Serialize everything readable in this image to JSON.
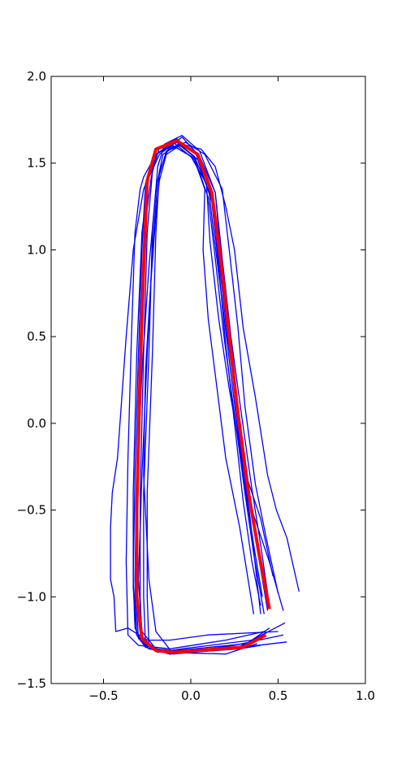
{
  "chart_data": {
    "type": "line",
    "title": "",
    "xlabel": "",
    "ylabel": "",
    "xlim": [
      -0.8,
      1.0
    ],
    "ylim": [
      -1.5,
      2.0
    ],
    "grid": false,
    "x_ticks": [
      {
        "value": -0.5,
        "label": "−0.5"
      },
      {
        "value": 0.0,
        "label": "0.0"
      },
      {
        "value": 0.5,
        "label": "0.5"
      },
      {
        "value": 1.0,
        "label": "1.0"
      }
    ],
    "y_ticks": [
      {
        "value": -1.5,
        "label": "−1.5"
      },
      {
        "value": -1.0,
        "label": "−1.0"
      },
      {
        "value": -0.5,
        "label": "−0.5"
      },
      {
        "value": 0.0,
        "label": "0.0"
      },
      {
        "value": 0.5,
        "label": "0.5"
      },
      {
        "value": 1.0,
        "label": "1.0"
      },
      {
        "value": 1.5,
        "label": "1.5"
      },
      {
        "value": 2.0,
        "label": "2.0"
      }
    ],
    "series_color": "#0000ff",
    "mean_color": "#ff0000",
    "series": [
      {
        "points": [
          [
            0.43,
            -1.21
          ],
          [
            0.3,
            -1.29
          ],
          [
            -0.1,
            -1.32
          ],
          [
            -0.24,
            -1.3
          ],
          [
            -0.28,
            -1.25
          ],
          [
            -0.29,
            -1.0
          ],
          [
            -0.29,
            -0.4
          ],
          [
            -0.27,
            0.4
          ],
          [
            -0.25,
            1.1
          ],
          [
            -0.22,
            1.45
          ],
          [
            -0.18,
            1.59
          ],
          [
            -0.08,
            1.64
          ],
          [
            0.03,
            1.55
          ],
          [
            0.12,
            1.32
          ],
          [
            0.16,
            0.95
          ],
          [
            0.21,
            0.5
          ],
          [
            0.27,
            0.05
          ],
          [
            0.33,
            -0.4
          ],
          [
            0.38,
            -0.72
          ],
          [
            0.44,
            -1.08
          ]
        ]
      },
      {
        "points": [
          [
            0.38,
            -1.24
          ],
          [
            0.25,
            -1.3
          ],
          [
            -0.12,
            -1.33
          ],
          [
            -0.26,
            -1.29
          ],
          [
            -0.31,
            -1.22
          ],
          [
            -0.33,
            -0.95
          ],
          [
            -0.33,
            -0.4
          ],
          [
            -0.31,
            0.4
          ],
          [
            -0.28,
            1.1
          ],
          [
            -0.24,
            1.42
          ],
          [
            -0.19,
            1.56
          ],
          [
            -0.1,
            1.6
          ],
          [
            0.02,
            1.53
          ],
          [
            0.1,
            1.3
          ],
          [
            0.14,
            0.95
          ],
          [
            0.19,
            0.5
          ],
          [
            0.25,
            0.05
          ],
          [
            0.31,
            -0.4
          ],
          [
            0.36,
            -0.75
          ],
          [
            0.42,
            -1.1
          ]
        ]
      },
      {
        "points": [
          [
            0.45,
            -1.18
          ],
          [
            0.32,
            -1.27
          ],
          [
            -0.08,
            -1.31
          ],
          [
            -0.21,
            -1.31
          ],
          [
            -0.26,
            -1.27
          ],
          [
            -0.27,
            -1.0
          ],
          [
            -0.27,
            -0.4
          ],
          [
            -0.24,
            0.4
          ],
          [
            -0.22,
            1.1
          ],
          [
            -0.19,
            1.48
          ],
          [
            -0.15,
            1.61
          ],
          [
            -0.05,
            1.66
          ],
          [
            0.05,
            1.57
          ],
          [
            0.14,
            1.33
          ],
          [
            0.18,
            0.95
          ],
          [
            0.23,
            0.5
          ],
          [
            0.29,
            0.05
          ],
          [
            0.35,
            -0.38
          ],
          [
            0.4,
            -0.7
          ],
          [
            0.45,
            -1.05
          ]
        ]
      },
      {
        "points": [
          [
            0.55,
            -1.26
          ],
          [
            0.3,
            -1.29
          ],
          [
            -0.1,
            -1.33
          ],
          [
            -0.24,
            -1.3
          ],
          [
            -0.3,
            -1.24
          ],
          [
            -0.32,
            -0.9
          ],
          [
            -0.31,
            -0.3
          ],
          [
            -0.28,
            0.5
          ],
          [
            -0.26,
            1.15
          ],
          [
            -0.23,
            1.4
          ],
          [
            -0.2,
            1.55
          ],
          [
            -0.1,
            1.62
          ],
          [
            0.02,
            1.52
          ],
          [
            0.08,
            1.35
          ],
          [
            0.07,
            1.0
          ],
          [
            0.1,
            0.6
          ],
          [
            0.15,
            0.2
          ],
          [
            0.2,
            -0.2
          ],
          [
            0.28,
            -0.6
          ],
          [
            0.36,
            -1.1
          ]
        ]
      },
      {
        "points": [
          [
            0.54,
            -1.15
          ],
          [
            0.35,
            -1.25
          ],
          [
            -0.05,
            -1.3
          ],
          [
            -0.19,
            -1.32
          ],
          [
            -0.24,
            -1.28
          ],
          [
            -0.25,
            -1.0
          ],
          [
            -0.25,
            -0.4
          ],
          [
            -0.22,
            0.4
          ],
          [
            -0.2,
            1.1
          ],
          [
            -0.18,
            1.45
          ],
          [
            -0.13,
            1.58
          ],
          [
            -0.03,
            1.62
          ],
          [
            0.08,
            1.55
          ],
          [
            0.18,
            1.35
          ],
          [
            0.22,
            1.0
          ],
          [
            0.27,
            0.55
          ],
          [
            0.31,
            0.1
          ],
          [
            0.37,
            -0.35
          ],
          [
            0.43,
            -0.65
          ],
          [
            0.5,
            -0.98
          ]
        ]
      },
      {
        "points": [
          [
            0.42,
            -1.2
          ],
          [
            0.2,
            -1.25
          ],
          [
            -0.12,
            -1.3
          ],
          [
            -0.3,
            -1.28
          ],
          [
            -0.36,
            -1.22
          ],
          [
            -0.37,
            -0.8
          ],
          [
            -0.36,
            -0.2
          ],
          [
            -0.34,
            0.5
          ],
          [
            -0.32,
            1.1
          ],
          [
            -0.29,
            1.35
          ],
          [
            -0.27,
            1.42
          ],
          [
            -0.2,
            1.55
          ],
          [
            -0.08,
            1.62
          ],
          [
            0.02,
            1.54
          ],
          [
            0.12,
            1.3
          ],
          [
            0.17,
            0.9
          ],
          [
            0.23,
            0.4
          ],
          [
            0.28,
            -0.1
          ],
          [
            0.34,
            -0.55
          ],
          [
            0.4,
            -1.1
          ]
        ]
      },
      {
        "points": [
          [
            0.38,
            -1.27
          ],
          [
            0.2,
            -1.33
          ],
          [
            -0.15,
            -1.32
          ],
          [
            -0.28,
            -1.26
          ],
          [
            -0.32,
            -1.18
          ],
          [
            -0.33,
            -0.9
          ],
          [
            -0.32,
            -0.3
          ],
          [
            -0.3,
            0.4
          ],
          [
            -0.28,
            1.0
          ],
          [
            -0.26,
            1.38
          ],
          [
            -0.21,
            1.54
          ],
          [
            -0.12,
            1.61
          ],
          [
            0.0,
            1.54
          ],
          [
            0.09,
            1.38
          ],
          [
            0.11,
            1.05
          ],
          [
            0.16,
            0.6
          ],
          [
            0.22,
            0.2
          ],
          [
            0.3,
            -0.25
          ],
          [
            0.4,
            -0.55
          ],
          [
            0.47,
            -0.88
          ]
        ]
      },
      {
        "points": [
          [
            0.62,
            -0.97
          ],
          [
            0.55,
            -0.66
          ],
          [
            0.49,
            -0.5
          ],
          [
            0.44,
            -0.3
          ],
          [
            0.37,
            0.15
          ],
          [
            0.3,
            0.55
          ],
          [
            0.25,
            1.0
          ],
          [
            0.2,
            1.25
          ],
          [
            0.14,
            1.48
          ],
          [
            0.06,
            1.58
          ],
          [
            -0.05,
            1.61
          ],
          [
            -0.14,
            1.55
          ],
          [
            -0.18,
            1.4
          ],
          [
            -0.2,
            1.2
          ],
          [
            -0.23,
            0.8
          ],
          [
            -0.26,
            0.3
          ],
          [
            -0.27,
            -0.3
          ],
          [
            -0.24,
            -0.9
          ],
          [
            -0.2,
            -1.2
          ],
          [
            -0.1,
            -1.33
          ]
        ]
      },
      {
        "points": [
          [
            0.4,
            -1.28
          ],
          [
            0.28,
            -1.3
          ],
          [
            0.0,
            -1.32
          ],
          [
            -0.2,
            -1.3
          ],
          [
            -0.28,
            -1.2
          ],
          [
            -0.3,
            -0.9
          ],
          [
            -0.28,
            -0.3
          ],
          [
            -0.25,
            0.4
          ],
          [
            -0.22,
            1.0
          ],
          [
            -0.19,
            1.4
          ],
          [
            -0.14,
            1.57
          ],
          [
            -0.06,
            1.6
          ],
          [
            0.04,
            1.52
          ],
          [
            0.12,
            1.28
          ],
          [
            0.16,
            0.9
          ],
          [
            0.2,
            0.45
          ],
          [
            0.25,
            0.0
          ],
          [
            0.3,
            -0.45
          ],
          [
            0.35,
            -0.8
          ],
          [
            0.4,
            -1.05
          ]
        ]
      },
      {
        "points": [
          [
            0.53,
            -1.22
          ],
          [
            0.25,
            -1.28
          ],
          [
            -0.12,
            -1.33
          ],
          [
            -0.26,
            -1.29
          ],
          [
            -0.31,
            -1.22
          ],
          [
            -0.32,
            -1.0
          ],
          [
            -0.31,
            -0.4
          ],
          [
            -0.28,
            0.3
          ],
          [
            -0.24,
            0.9
          ],
          [
            -0.2,
            1.35
          ],
          [
            -0.16,
            1.55
          ],
          [
            -0.07,
            1.61
          ],
          [
            0.04,
            1.55
          ],
          [
            0.1,
            1.38
          ],
          [
            0.13,
            1.1
          ],
          [
            0.18,
            0.7
          ],
          [
            0.24,
            0.2
          ],
          [
            0.3,
            -0.3
          ],
          [
            0.36,
            -0.7
          ],
          [
            0.41,
            -1.0
          ]
        ]
      },
      {
        "points": [
          [
            0.5,
            -1.2
          ],
          [
            0.1,
            -1.22
          ],
          [
            -0.12,
            -1.25
          ],
          [
            -0.25,
            -1.25
          ],
          [
            -0.36,
            -1.18
          ],
          [
            -0.43,
            -1.2
          ],
          [
            -0.44,
            -1.0
          ],
          [
            -0.46,
            -0.9
          ],
          [
            -0.46,
            -0.6
          ],
          [
            -0.45,
            -0.4
          ],
          [
            -0.42,
            -0.2
          ],
          [
            -0.37,
            0.5
          ],
          [
            -0.33,
            1.0
          ],
          [
            -0.27,
            1.35
          ],
          [
            -0.18,
            1.55
          ],
          [
            -0.05,
            1.65
          ],
          [
            0.05,
            1.54
          ],
          [
            0.14,
            1.33
          ],
          [
            0.18,
            0.9
          ],
          [
            0.27,
            0.1
          ],
          [
            0.35,
            -0.5
          ],
          [
            0.45,
            -0.8
          ],
          [
            0.53,
            -1.08
          ]
        ]
      }
    ],
    "mean_line": {
      "points": [
        [
          0.43,
          -1.22
        ],
        [
          0.3,
          -1.29
        ],
        [
          -0.1,
          -1.32
        ],
        [
          -0.2,
          -1.31
        ],
        [
          -0.28,
          -1.24
        ],
        [
          -0.31,
          -1.0
        ],
        [
          -0.31,
          -0.5
        ],
        [
          -0.29,
          0.3
        ],
        [
          -0.27,
          0.9
        ],
        [
          -0.25,
          1.4
        ],
        [
          -0.2,
          1.58
        ],
        [
          -0.08,
          1.63
        ],
        [
          0.04,
          1.55
        ],
        [
          0.12,
          1.33
        ],
        [
          0.17,
          0.95
        ],
        [
          0.22,
          0.5
        ],
        [
          0.27,
          0.05
        ],
        [
          0.33,
          -0.4
        ],
        [
          0.39,
          -0.75
        ],
        [
          0.45,
          -1.07
        ]
      ]
    }
  }
}
